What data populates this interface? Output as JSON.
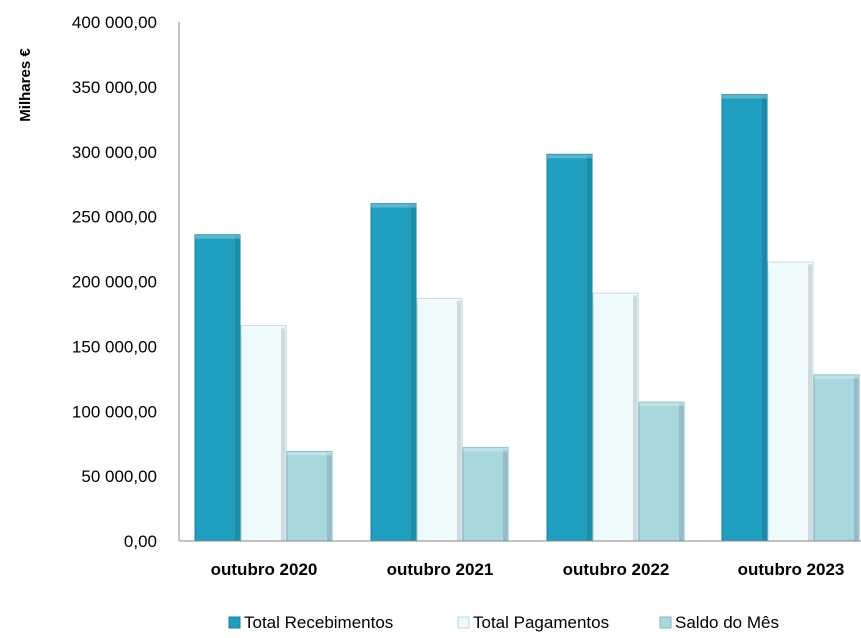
{
  "chart_data": {
    "type": "bar",
    "ylabel": "Milhares €",
    "ylim": [
      0,
      400000
    ],
    "yticks": [
      "0,00",
      "50 000,00",
      "100 000,00",
      "150 000,00",
      "200 000,00",
      "250 000,00",
      "300 000,00",
      "350 000,00",
      "400 000,00"
    ],
    "categories": [
      "outubro  2020",
      "outubro  2021",
      "outubro  2022",
      "outubro 2023"
    ],
    "series": [
      {
        "name": "Total Recebimentos",
        "color": "#1f9fbf",
        "values": [
          236000,
          260000,
          298000,
          344000
        ]
      },
      {
        "name": "Total Pagamentos",
        "color": "#eefafc",
        "values": [
          166000,
          187000,
          191000,
          215000
        ]
      },
      {
        "name": "Saldo do Mês",
        "color": "#a8d8de",
        "values": [
          69000,
          72000,
          107000,
          128000
        ]
      }
    ],
    "legend_position": "bottom",
    "grid": false
  }
}
